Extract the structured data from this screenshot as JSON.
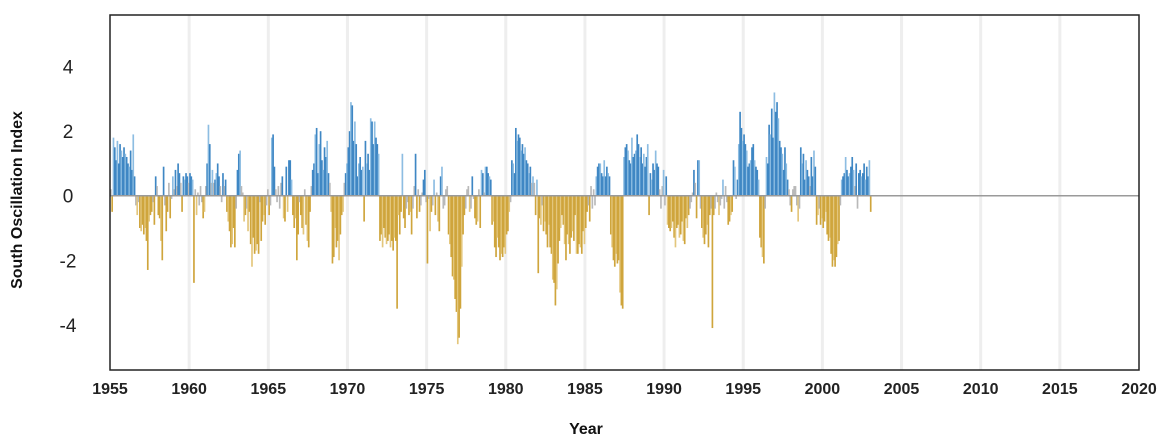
{
  "chart_data": {
    "type": "bar",
    "ylabel": "South Oscillation Index",
    "xlabel": "Year",
    "xlim": [
      1955,
      2020
    ],
    "ylim": [
      -5.4,
      5.6
    ],
    "xticks": [
      "1955",
      "1960",
      "1965",
      "1970",
      "1975",
      "1980",
      "1985",
      "1990",
      "1995",
      "2000",
      "2005",
      "2010",
      "2015",
      "2020"
    ],
    "yticks": [
      {
        "v": 4,
        "label": "4"
      },
      {
        "v": 2,
        "label": "2"
      },
      {
        "v": 0,
        "label": "0"
      },
      {
        "v": -2,
        "label": "-2"
      },
      {
        "v": -4,
        "label": "-4"
      }
    ],
    "grid": "vertical",
    "colors": {
      "positive": "#3f87c4",
      "positive_light": "#8dbde2",
      "negative": "#cfa53c",
      "negative_light": "#e3c67c",
      "neutral": "#b9b9b9"
    },
    "series": [
      {
        "frequency": "monthly",
        "start": "1955-01",
        "values": [
          0.2,
          -0.5,
          1.8,
          1.5,
          1.1,
          1.7,
          1.0,
          1.6,
          1.4,
          1.2,
          1.5,
          1.3,
          1.2,
          1.0,
          0.9,
          1.4,
          0.8,
          1.9,
          0.6,
          -0.3,
          -0.6,
          -0.2,
          -1.0,
          -1.1,
          -0.9,
          -1.2,
          -1.0,
          -1.4,
          -2.3,
          -0.8,
          -0.6,
          -0.5,
          -0.2,
          -0.9,
          0.6,
          0.3,
          -0.6,
          -0.7,
          -1.4,
          -2.0,
          0.9,
          -0.3,
          -1.1,
          -0.5,
          0.4,
          -0.7,
          -0.1,
          0.6,
          0.2,
          0.8,
          0.3,
          1.0,
          0.7,
          0.4,
          -0.5,
          0.6,
          0.5,
          0.7,
          0.6,
          0.4,
          0.7,
          0.6,
          0.5,
          -2.7,
          0.2,
          -0.6,
          0.1,
          -0.3,
          0.3,
          -0.2,
          -0.7,
          -0.5,
          0.3,
          1.0,
          2.2,
          1.6,
          0.4,
          0.8,
          0.4,
          0.5,
          0.7,
          1.0,
          0.6,
          0.3,
          -0.2,
          0.7,
          0.3,
          0.5,
          -0.5,
          -0.8,
          -1.1,
          -1.6,
          -1.5,
          -1.0,
          -1.6,
          -0.4,
          0.8,
          1.3,
          1.4,
          0.3,
          0.1,
          -0.8,
          -0.6,
          -0.4,
          -1.1,
          -0.5,
          -1.5,
          -2.2,
          -1.3,
          -1.8,
          -1.7,
          -1.5,
          -1.8,
          -0.2,
          -1.4,
          -0.8,
          -0.6,
          -0.9,
          -0.3,
          0.2,
          -0.6,
          -0.3,
          1.8,
          1.9,
          0.9,
          0.2,
          -0.2,
          0.3,
          -0.4,
          0.4,
          0.6,
          -0.7,
          -0.8,
          0.9,
          -0.5,
          1.1,
          1.1,
          0.5,
          -0.6,
          -1.0,
          -0.7,
          -2.0,
          -1.2,
          -0.2,
          -0.6,
          -1.0,
          -1.2,
          0.2,
          -0.9,
          -1.4,
          -1.6,
          -0.5,
          0.3,
          0.8,
          1.0,
          1.9,
          2.1,
          0.7,
          1.6,
          2.0,
          1.1,
          0.8,
          1.5,
          1.2,
          1.7,
          0.7,
          0.4,
          -0.5,
          -2.1,
          -1.9,
          -1.0,
          -1.6,
          -1.4,
          -2.0,
          -1.2,
          -0.6,
          -0.5,
          0.4,
          0.7,
          1.0,
          1.5,
          2.0,
          2.9,
          2.8,
          1.7,
          2.3,
          1.6,
          0.6,
          1.0,
          1.2,
          0.8,
          0.9,
          -0.8,
          1.7,
          1.0,
          1.3,
          0.8,
          2.4,
          2.3,
          1.6,
          2.3,
          1.8,
          1.6,
          1.3,
          -1.4,
          -1.2,
          -1.6,
          -1.0,
          -1.3,
          -1.5,
          -1.4,
          -1.2,
          -1.6,
          -1.4,
          -1.7,
          -1.3,
          -1.4,
          -3.5,
          -0.6,
          -1.2,
          -0.5,
          1.3,
          -0.7,
          -1.0,
          -0.4,
          -0.2,
          -0.6,
          -0.5,
          -1.2,
          -0.4,
          0.3,
          1.3,
          -0.7,
          0.2,
          -0.5,
          -0.3,
          0.1,
          0.5,
          0.8,
          -0.2,
          -2.1,
          -0.1,
          -1.1,
          -0.5,
          -0.3,
          0.5,
          -0.6,
          0.1,
          -0.8,
          -1.1,
          0.6,
          0.9,
          -0.4,
          -0.3,
          0.2,
          0.3,
          -1.2,
          -1.5,
          -1.9,
          -2.5,
          -2.6,
          -3.2,
          -3.6,
          -4.6,
          -4.4,
          -3.5,
          -2.2,
          -1.2,
          -0.6,
          -0.4,
          0.2,
          0.3,
          -0.5,
          -0.4,
          0.6,
          -0.1,
          -0.7,
          -0.9,
          -0.8,
          0.2,
          -1.0,
          0.8,
          0.7,
          0.1,
          0.9,
          0.9,
          0.7,
          0.6,
          0.5,
          -0.9,
          -0.8,
          -1.6,
          -1.9,
          -1.3,
          -1.6,
          -2.0,
          -1.8,
          -1.9,
          -1.6,
          -1.8,
          -1.2,
          -1.1,
          -0.5,
          -0.2,
          1.1,
          1.0,
          0.7,
          2.1,
          1.7,
          1.9,
          1.8,
          1.4,
          1.6,
          1.3,
          1.5,
          1.1,
          1.0,
          0.7,
          0.9,
          0.4,
          0.6,
          0.4,
          -0.6,
          0.5,
          -2.4,
          -0.7,
          -0.9,
          -0.3,
          -1.1,
          -0.8,
          -1.2,
          -1.6,
          -0.9,
          -1.6,
          -1.8,
          -2.6,
          -2.7,
          -3.4,
          -2.9,
          -2.1,
          -1.4,
          -1.0,
          -0.6,
          -0.9,
          -1.5,
          -2.0,
          -1.2,
          -1.5,
          -1.8,
          -1.3,
          -1.1,
          -1.4,
          -0.6,
          -1.8,
          -1.8,
          -1.5,
          -1.6,
          -1.8,
          -1.1,
          -1.5,
          -1.0,
          -0.5,
          -0.3,
          -0.8,
          0.3,
          -0.4,
          0.2,
          -0.3,
          0.6,
          0.9,
          1.0,
          1.0,
          0.7,
          0.6,
          1.1,
          0.6,
          0.9,
          0.7,
          0.6,
          -1.2,
          -1.6,
          -2.0,
          -2.2,
          -1.8,
          -2.1,
          -2.0,
          -3.0,
          -3.4,
          -3.5,
          1.2,
          1.5,
          1.6,
          1.4,
          1.1,
          1.0,
          1.8,
          1.2,
          1.3,
          1.4,
          1.9,
          1.6,
          1.2,
          1.5,
          1.0,
          1.3,
          0.9,
          1.2,
          1.6,
          -0.6,
          0.7,
          0.5,
          1.0,
          0.8,
          1.4,
          1.0,
          0.9,
          0.2,
          -0.4,
          0.3,
          0.8,
          -0.3,
          0.6,
          -0.9,
          -1.0,
          -1.1,
          -1.0,
          -0.8,
          -1.3,
          -1.6,
          -1.0,
          -0.9,
          -1.3,
          -1.2,
          -0.8,
          -1.4,
          -1.5,
          -0.7,
          -1.0,
          -0.6,
          -0.4,
          -0.2,
          0.1,
          0.8,
          0.4,
          -0.7,
          1.1,
          1.1,
          -0.4,
          -1.0,
          -1.3,
          -1.5,
          -1.2,
          -0.9,
          -1.6,
          -0.6,
          -0.4,
          -4.1,
          -0.6,
          -0.4,
          0.1,
          -0.2,
          -0.6,
          -0.3,
          -0.1,
          0.5,
          -0.4,
          0.3,
          -0.2,
          -0.9,
          -0.8,
          -0.6,
          -0.5,
          1.1,
          0.9,
          -0.1,
          0.5,
          1.6,
          2.6,
          2.1,
          1.7,
          1.9,
          1.6,
          1.4,
          0.9,
          1.0,
          1.1,
          1.5,
          1.6,
          1.1,
          0.9,
          0.8,
          0.5,
          -1.3,
          -1.6,
          -1.9,
          -2.1,
          -0.4,
          1.2,
          1.0,
          2.2,
          1.9,
          2.7,
          1.8,
          3.2,
          2.6,
          2.9,
          2.4,
          1.7,
          1.5,
          1.3,
          0.8,
          1.5,
          1.0,
          0.5,
          0.2,
          -0.3,
          -0.5,
          0.2,
          0.3,
          0.3,
          -0.3,
          -0.8,
          -0.4,
          1.5,
          1.0,
          1.3,
          0.5,
          1.1,
          0.8,
          0.6,
          0.3,
          1.2,
          0.6,
          1.4,
          0.9,
          -0.9,
          -0.6,
          -0.4,
          -0.9,
          -0.7,
          -1.0,
          -0.8,
          -0.5,
          -1.2,
          -1.4,
          -1.3,
          -1.8,
          -2.2,
          -2.0,
          -2.2,
          -1.9,
          -1.5,
          -1.4,
          -0.3,
          0.5,
          0.6,
          0.7,
          1.2,
          0.8,
          0.6,
          0.7,
          0.9,
          1.2,
          0.8,
          0.3,
          1.0,
          -0.4,
          0.7,
          0.8,
          0.6,
          0.7,
          1.0,
          0.5,
          0.9,
          0.6,
          1.1,
          -0.5
        ]
      }
    ]
  }
}
